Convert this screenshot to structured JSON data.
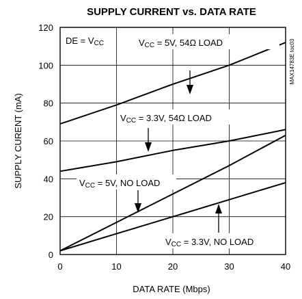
{
  "chart_data": {
    "type": "line",
    "title": "SUPPLY CURRENT vs. DATA RATE",
    "xlabel": "DATA RATE (Mbps)",
    "ylabel": "SUPPLY CURENT (mA)",
    "xlim": [
      0,
      40
    ],
    "ylim": [
      0,
      120
    ],
    "x_ticks": [
      "0",
      "10",
      "20",
      "30",
      "40"
    ],
    "y_ticks": [
      "0",
      "20",
      "40",
      "60",
      "80",
      "100",
      "120"
    ],
    "grid": true,
    "condition": {
      "pre": "DE = V",
      "sub": "CC",
      "post": ""
    },
    "figure_id": "MAX14783E toc03",
    "series": [
      {
        "label": {
          "pre": "V",
          "sub": "CC",
          "post": " = 5V, 54Ω LOAD"
        },
        "x": [
          0,
          10,
          20,
          30,
          40
        ],
        "y": [
          69,
          79,
          90,
          100,
          112
        ]
      },
      {
        "label": {
          "pre": "V",
          "sub": "CC",
          "post": " = 3.3V, 54Ω LOAD"
        },
        "x": [
          0,
          10,
          20,
          30,
          40
        ],
        "y": [
          44,
          49,
          55,
          60,
          66
        ]
      },
      {
        "label": {
          "pre": "V",
          "sub": "CC",
          "post": " = 5V, NO LOAD"
        },
        "x": [
          0,
          10,
          20,
          30,
          40
        ],
        "y": [
          2,
          17,
          32,
          47,
          63
        ]
      },
      {
        "label": {
          "pre": "V",
          "sub": "CC",
          "post": " = 3.3V, NO LOAD"
        },
        "x": [
          0,
          10,
          20,
          30,
          40
        ],
        "y": [
          2,
          11,
          20,
          29,
          38
        ]
      }
    ]
  }
}
